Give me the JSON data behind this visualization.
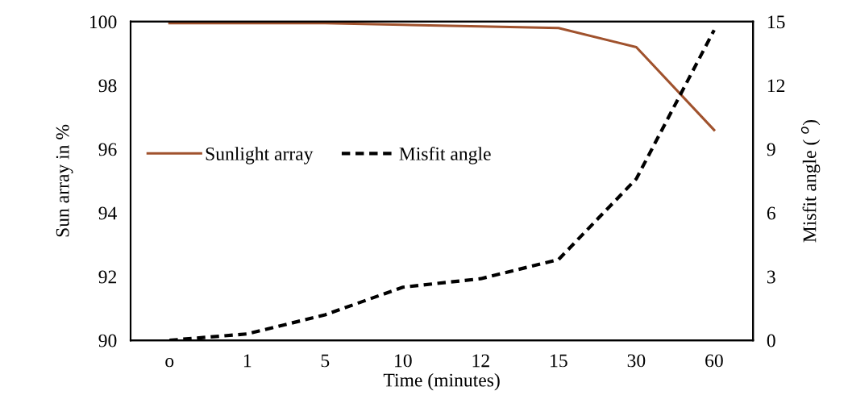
{
  "chart_data": {
    "type": "line",
    "xlabel": "Time (minutes)",
    "ylabel": "Sun array in %",
    "y2label": "Misfit angle ( $^{o}$)",
    "categories": [
      "o",
      "1",
      "5",
      "10",
      "12",
      "15",
      "30",
      "60"
    ],
    "series": [
      {
        "name": "Sunlight array",
        "color": "#a0522d",
        "line_style": "solid",
        "values": [
          99.95,
          99.95,
          99.95,
          99.9,
          99.85,
          99.8,
          99.2,
          96.6
        ]
      },
      {
        "name": "Misfit angle",
        "color": "#000000",
        "line_style": "dashed",
        "axis": "y2",
        "values": [
          0,
          0.3,
          1.2,
          2.5,
          2.9,
          3.8,
          7.6,
          14.6
        ]
      }
    ],
    "ylim": [
      90,
      100
    ],
    "yticks": [
      90,
      92,
      94,
      96,
      98,
      100
    ],
    "y2lim": [
      0,
      15
    ],
    "y2ticks": [
      0,
      3,
      6,
      9,
      12,
      15
    ],
    "grid": false,
    "legend": "left",
    "marker": "none"
  }
}
